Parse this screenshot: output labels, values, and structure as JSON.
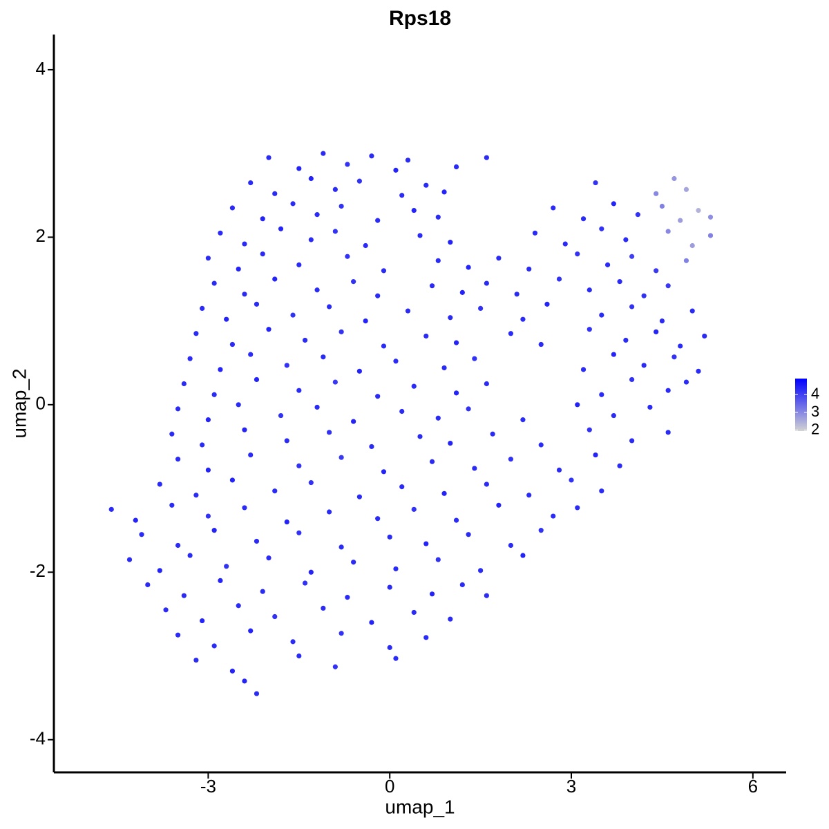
{
  "chart_data": {
    "type": "scatter",
    "title": "Rps18",
    "x_label": "umap_1",
    "y_label": "umap_2",
    "xlim": [
      -5.55,
      6.55
    ],
    "ylim": [
      -4.39,
      4.42
    ],
    "xticks": [
      -3,
      0,
      3,
      6
    ],
    "yticks": [
      -4,
      -2,
      0,
      2,
      4
    ],
    "colorbar": {
      "lim": [
        1.95,
        4.9
      ],
      "ticks": [
        2,
        3,
        4
      ],
      "colors": [
        "#d3d3d3",
        "#0000ff"
      ]
    },
    "x": [
      -2.0,
      -1.5,
      -1.1,
      -0.7,
      -0.3,
      0.1,
      0.3,
      1.1,
      1.6,
      -2.3,
      -1.9,
      -1.3,
      -0.9,
      -0.5,
      0.2,
      0.6,
      0.9,
      3.4,
      4.4,
      4.7,
      4.9,
      -2.6,
      -2.1,
      -1.6,
      -1.2,
      -0.8,
      -0.2,
      0.4,
      0.8,
      2.7,
      3.2,
      3.7,
      4.1,
      4.5,
      4.8,
      5.1,
      5.3,
      -2.8,
      -2.4,
      -1.8,
      -1.3,
      -0.9,
      -0.4,
      0.5,
      1.0,
      2.4,
      2.9,
      3.5,
      3.9,
      4.6,
      5.0,
      5.3,
      -3.0,
      -2.5,
      -2.1,
      -1.5,
      -0.7,
      -0.1,
      0.8,
      1.3,
      1.8,
      2.3,
      3.1,
      3.6,
      4.0,
      4.4,
      4.9,
      -2.9,
      -2.4,
      -1.9,
      -1.2,
      -0.6,
      -0.2,
      0.7,
      1.2,
      1.6,
      2.1,
      2.8,
      3.3,
      3.8,
      4.2,
      4.6,
      -3.1,
      -2.7,
      -2.2,
      -1.6,
      -1.0,
      -0.4,
      0.3,
      1.0,
      1.5,
      2.2,
      2.6,
      3.5,
      4.0,
      4.5,
      5.0,
      -3.2,
      -2.6,
      -2.0,
      -1.4,
      -0.8,
      -0.1,
      0.6,
      1.1,
      2.0,
      2.5,
      3.3,
      3.9,
      4.4,
      4.8,
      5.2,
      -3.3,
      -2.8,
      -2.3,
      -1.7,
      -1.1,
      -0.5,
      0.1,
      0.9,
      1.4,
      3.2,
      3.7,
      4.2,
      4.7,
      5.1,
      -3.4,
      -2.9,
      -2.2,
      -1.5,
      -0.9,
      -0.2,
      0.4,
      1.1,
      1.6,
      3.5,
      4.0,
      4.6,
      4.9,
      -3.5,
      -3.0,
      -2.5,
      -1.8,
      -1.2,
      -0.6,
      0.2,
      0.8,
      1.3,
      2.2,
      3.1,
      3.7,
      4.3,
      -3.6,
      -3.1,
      -2.4,
      -1.7,
      -1.0,
      -0.3,
      0.5,
      1.0,
      1.7,
      2.5,
      3.3,
      4.0,
      4.6,
      -3.5,
      -3.0,
      -2.3,
      -1.5,
      -0.8,
      -0.1,
      0.7,
      1.4,
      2.0,
      2.8,
      3.4,
      3.8,
      -3.8,
      -3.2,
      -2.6,
      -1.9,
      -1.3,
      -0.5,
      0.2,
      0.9,
      1.6,
      2.3,
      3.0,
      3.5,
      -4.6,
      -4.2,
      -3.6,
      -3.0,
      -2.4,
      -1.7,
      -1.0,
      -0.2,
      0.4,
      1.1,
      1.8,
      2.7,
      3.1,
      -4.1,
      -3.5,
      -2.9,
      -2.2,
      -1.5,
      -0.8,
      0.0,
      0.6,
      1.3,
      2.0,
      2.5,
      -4.3,
      -3.8,
      -3.3,
      -2.7,
      -2.0,
      -1.3,
      -0.6,
      0.1,
      0.8,
      1.5,
      2.2,
      -4.0,
      -3.4,
      -2.8,
      -2.1,
      -1.4,
      -0.7,
      0.0,
      0.7,
      1.2,
      1.6,
      -3.7,
      -3.1,
      -2.5,
      -1.9,
      -1.1,
      -0.3,
      0.4,
      1.0,
      -3.5,
      -2.9,
      -2.3,
      -1.6,
      -0.8,
      0.0,
      0.6,
      -3.2,
      -2.6,
      -1.5,
      -0.9,
      0.1,
      -2.2,
      -2.4
    ],
    "values": [
      2.95,
      2.82,
      3.0,
      2.87,
      2.97,
      2.8,
      2.92,
      2.84,
      2.95,
      2.65,
      2.52,
      2.7,
      2.57,
      2.67,
      2.5,
      2.62,
      2.54,
      2.65,
      2.52,
      2.7,
      2.57,
      2.35,
      2.22,
      2.4,
      2.27,
      2.37,
      2.2,
      2.32,
      2.24,
      2.35,
      2.22,
      2.4,
      2.27,
      2.37,
      2.2,
      2.32,
      2.24,
      2.05,
      1.92,
      2.1,
      1.97,
      2.07,
      1.9,
      2.02,
      1.94,
      2.05,
      1.92,
      2.1,
      1.97,
      2.07,
      1.9,
      2.02,
      1.75,
      1.62,
      1.8,
      1.67,
      1.77,
      1.6,
      1.72,
      1.64,
      1.75,
      1.62,
      1.8,
      1.67,
      1.77,
      1.6,
      1.72,
      1.45,
      1.32,
      1.5,
      1.37,
      1.47,
      1.3,
      1.42,
      1.34,
      1.45,
      1.32,
      1.5,
      1.37,
      1.47,
      1.3,
      1.42,
      1.15,
      1.02,
      1.2,
      1.07,
      1.17,
      1.0,
      1.12,
      1.04,
      1.15,
      1.02,
      1.2,
      1.07,
      1.17,
      1.0,
      1.12,
      0.85,
      0.72,
      0.9,
      0.77,
      0.87,
      0.7,
      0.82,
      0.74,
      0.85,
      0.72,
      0.9,
      0.77,
      0.87,
      0.7,
      0.82,
      0.55,
      0.42,
      0.6,
      0.47,
      0.57,
      0.4,
      0.52,
      0.44,
      0.55,
      0.42,
      0.6,
      0.47,
      0.57,
      0.4,
      0.25,
      0.12,
      0.3,
      0.17,
      0.27,
      0.1,
      0.22,
      0.14,
      0.25,
      0.12,
      0.3,
      0.17,
      0.27,
      -0.05,
      -0.18,
      0.0,
      -0.13,
      -0.03,
      -0.2,
      -0.08,
      -0.16,
      -0.05,
      -0.18,
      0.0,
      -0.13,
      -0.03,
      -0.35,
      -0.48,
      -0.3,
      -0.43,
      -0.33,
      -0.5,
      -0.38,
      -0.46,
      -0.35,
      -0.48,
      -0.3,
      -0.43,
      -0.33,
      -0.65,
      -0.78,
      -0.6,
      -0.73,
      -0.63,
      -0.8,
      -0.68,
      -0.76,
      -0.65,
      -0.78,
      -0.6,
      -0.73,
      -0.95,
      -1.08,
      -0.9,
      -1.03,
      -0.93,
      -1.1,
      -0.98,
      -1.06,
      -0.95,
      -1.08,
      -0.9,
      -1.03,
      -1.25,
      -1.38,
      -1.2,
      -1.33,
      -1.23,
      -1.4,
      -1.28,
      -1.36,
      -1.25,
      -1.38,
      -1.2,
      -1.33,
      -1.23,
      -1.55,
      -1.68,
      -1.5,
      -1.63,
      -1.53,
      -1.7,
      -1.58,
      -1.66,
      -1.55,
      -1.68,
      -1.5,
      -1.85,
      -1.98,
      -1.8,
      -1.93,
      -1.83,
      -2.0,
      -1.88,
      -1.96,
      -1.85,
      -1.98,
      -1.8,
      -2.15,
      -2.28,
      -2.1,
      -2.23,
      -2.13,
      -2.3,
      -2.18,
      -2.26,
      -2.15,
      -2.28,
      -2.45,
      -2.58,
      -2.4,
      -2.53,
      -2.43,
      -2.6,
      -2.48,
      -2.56,
      -2.75,
      -2.88,
      -2.7,
      -2.83,
      -2.73,
      -2.9,
      -2.78,
      -3.05,
      -3.18,
      -3.0,
      -3.13,
      -3.03,
      -3.45,
      -3.3
    ],
    "expression": [
      4.3,
      4.4,
      4.3,
      4.2,
      4.3,
      4.4,
      4.3,
      4.3,
      4.3,
      4.3,
      4.3,
      4.4,
      4.3,
      4.2,
      4.3,
      4.3,
      4.4,
      4.2,
      3.0,
      2.8,
      2.6,
      4.3,
      4.4,
      4.3,
      4.3,
      4.2,
      4.3,
      4.4,
      4.3,
      4.3,
      4.3,
      4.4,
      4.2,
      3.1,
      2.7,
      2.4,
      2.9,
      4.3,
      4.3,
      4.4,
      4.3,
      4.2,
      4.3,
      4.3,
      4.4,
      4.3,
      4.3,
      4.2,
      4.3,
      3.0,
      2.7,
      3.1,
      4.3,
      4.4,
      4.3,
      4.3,
      4.2,
      4.3,
      4.3,
      4.4,
      4.3,
      4.3,
      4.2,
      4.3,
      4.0,
      4.1,
      3.1,
      4.3,
      4.3,
      4.4,
      4.3,
      4.2,
      4.3,
      4.3,
      4.4,
      4.3,
      4.3,
      4.2,
      4.3,
      4.3,
      4.2,
      4.1,
      4.3,
      4.4,
      4.3,
      4.2,
      4.3,
      4.4,
      4.3,
      4.3,
      4.2,
      4.3,
      4.4,
      4.3,
      4.2,
      4.3,
      4.3,
      4.3,
      4.3,
      4.4,
      4.3,
      4.2,
      4.3,
      4.3,
      4.4,
      4.3,
      4.3,
      4.2,
      4.3,
      4.4,
      4.3,
      4.3,
      4.3,
      4.4,
      4.3,
      4.2,
      4.3,
      4.4,
      4.3,
      4.3,
      4.2,
      4.3,
      4.4,
      4.3,
      4.2,
      4.3,
      4.3,
      4.3,
      4.4,
      4.3,
      4.1,
      4.3,
      4.3,
      4.4,
      4.3,
      4.3,
      4.2,
      4.3,
      4.3,
      4.3,
      4.4,
      4.3,
      4.2,
      4.3,
      4.4,
      4.3,
      4.3,
      4.2,
      4.3,
      4.4,
      4.3,
      4.3,
      4.3,
      4.3,
      4.4,
      4.3,
      4.2,
      4.3,
      4.3,
      4.4,
      4.3,
      4.3,
      4.2,
      4.3,
      4.3,
      4.3,
      4.4,
      4.3,
      4.2,
      4.1,
      4.4,
      4.3,
      4.3,
      4.2,
      4.3,
      4.4,
      4.3,
      4.3,
      4.3,
      4.4,
      4.3,
      4.2,
      4.3,
      4.3,
      4.4,
      4.3,
      4.3,
      4.2,
      4.3,
      4.3,
      4.4,
      4.3,
      4.2,
      4.3,
      4.4,
      4.3,
      4.3,
      4.2,
      4.3,
      4.4,
      4.3,
      4.3,
      4.3,
      4.3,
      4.4,
      4.3,
      4.2,
      4.3,
      4.3,
      4.4,
      4.3,
      4.3,
      4.2,
      4.3,
      4.4,
      4.3,
      4.2,
      4.3,
      4.4,
      4.3,
      4.3,
      4.2,
      4.3,
      4.4,
      4.3,
      4.3,
      4.4,
      4.3,
      4.2,
      4.3,
      4.3,
      4.4,
      4.3,
      4.3,
      4.3,
      4.4,
      4.3,
      4.2,
      4.3,
      4.4,
      4.3,
      4.3,
      4.3,
      4.3,
      4.4,
      4.3,
      4.2,
      4.3,
      4.3,
      4.3,
      4.4,
      4.3,
      4.2,
      4.3,
      4.3,
      4.4
    ]
  }
}
